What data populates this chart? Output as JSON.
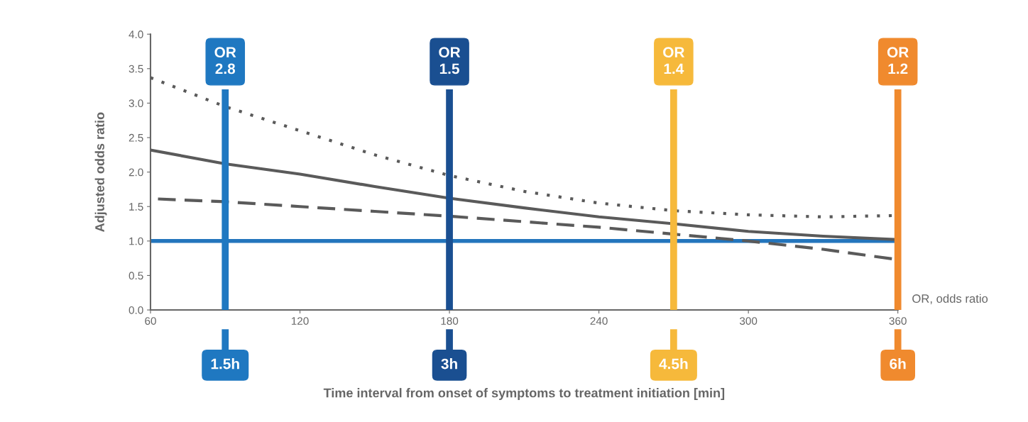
{
  "chart_data": {
    "type": "line",
    "xlabel": "Time interval from onset of symptoms to treatment initiation [min]",
    "ylabel": "Adjusted odds ratio",
    "xlim": [
      60,
      360
    ],
    "xticks": [
      60,
      120,
      180,
      240,
      300,
      360
    ],
    "ylim": [
      0,
      4
    ],
    "yticks": [
      {
        "value": 0,
        "label": "0.0"
      },
      {
        "value": 0.5,
        "label": "0.5"
      },
      {
        "value": 1,
        "label": "1.0"
      },
      {
        "value": 1.5,
        "label": "1.5"
      },
      {
        "value": 2,
        "label": "2.0"
      },
      {
        "value": 2.5,
        "label": "2.5"
      },
      {
        "value": 3,
        "label": "3.0"
      },
      {
        "value": 3.5,
        "label": "3.5"
      },
      {
        "value": 4,
        "label": "4.0"
      }
    ],
    "grid": false,
    "marker": "none",
    "series": [
      {
        "color": "#5a5a5a",
        "line_style": "dotted",
        "x": [
          60,
          90,
          120,
          150,
          180,
          210,
          240,
          270,
          300,
          330,
          360
        ],
        "values": [
          3.37,
          2.95,
          2.6,
          2.25,
          1.95,
          1.72,
          1.55,
          1.44,
          1.38,
          1.35,
          1.37
        ]
      },
      {
        "color": "#5a5a5a",
        "line_style": "solid",
        "x": [
          60,
          90,
          120,
          150,
          180,
          210,
          240,
          270,
          300,
          330,
          360
        ],
        "values": [
          2.32,
          2.12,
          1.97,
          1.79,
          1.62,
          1.48,
          1.35,
          1.25,
          1.14,
          1.07,
          1.02
        ]
      },
      {
        "color": "#5a5a5a",
        "line_style": "dashed",
        "x": [
          63,
          90,
          120,
          150,
          180,
          210,
          240,
          270,
          300,
          330,
          360
        ],
        "values": [
          1.61,
          1.57,
          1.5,
          1.43,
          1.36,
          1.28,
          1.2,
          1.1,
          1.0,
          0.88,
          0.73
        ]
      }
    ],
    "ref_lines": [
      {
        "axis": "y",
        "value": 1,
        "color": "#2375bd"
      },
      {
        "axis": "x",
        "value": 90,
        "label": "OR\n2.8",
        "color": "#1f78c1"
      },
      {
        "axis": "x",
        "value": 180,
        "label": "OR\n1.5",
        "color": "#1a4f91"
      },
      {
        "axis": "x",
        "value": 270,
        "label": "OR\n1.4",
        "color": "#f6b93b"
      },
      {
        "axis": "x",
        "value": 360,
        "label": "OR\n1.2",
        "color": "#f08a2e"
      }
    ],
    "annotations": [
      "1.5h",
      "3h",
      "4.5h",
      "6h",
      "OR, odds ratio"
    ]
  }
}
